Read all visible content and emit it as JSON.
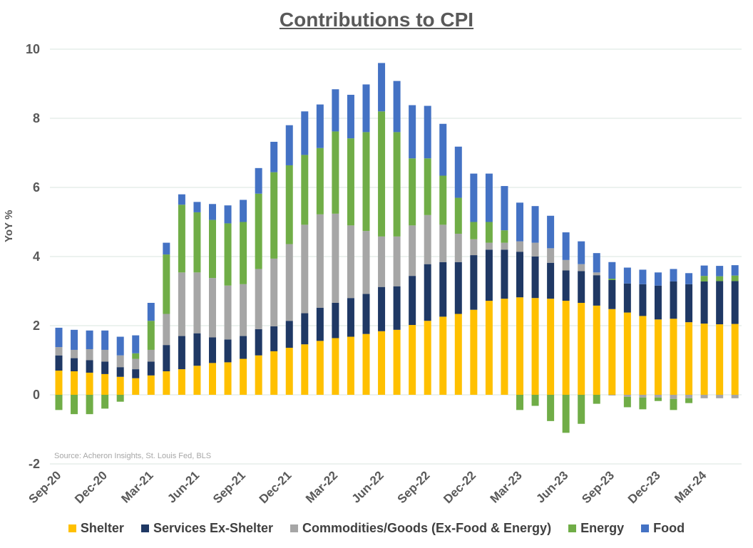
{
  "chart_data": {
    "type": "bar",
    "stacked": true,
    "title": "Contributions to CPI",
    "ylabel": "YoY %",
    "xlabel": "",
    "ylim": [
      -2,
      10
    ],
    "yticks": [
      "-2",
      "0",
      "2",
      "4",
      "6",
      "8",
      "10"
    ],
    "grid": true,
    "legend_position": "bottom",
    "source": "Source: Acheron Insights, St. Louis Fed, BLS",
    "x_tick_labels": [
      "Sep-20",
      "Dec-20",
      "Mar-21",
      "Jun-21",
      "Sep-21",
      "Dec-21",
      "Mar-22",
      "Jun-22",
      "Sep-22",
      "Dec-22",
      "Mar-23",
      "Jun-23",
      "Sep-23",
      "Dec-23",
      "Mar-24"
    ],
    "categories": [
      "Sep-20",
      "Oct-20",
      "Nov-20",
      "Dec-20",
      "Jan-21",
      "Feb-21",
      "Mar-21",
      "Apr-21",
      "May-21",
      "Jun-21",
      "Jul-21",
      "Aug-21",
      "Sep-21",
      "Oct-21",
      "Nov-21",
      "Dec-21",
      "Jan-22",
      "Feb-22",
      "Mar-22",
      "Apr-22",
      "May-22",
      "Jun-22",
      "Jul-22",
      "Aug-22",
      "Sep-22",
      "Oct-22",
      "Nov-22",
      "Dec-22",
      "Jan-23",
      "Feb-23",
      "Mar-23",
      "Apr-23",
      "May-23",
      "Jun-23",
      "Jul-23",
      "Aug-23",
      "Sep-23",
      "Oct-23",
      "Nov-23",
      "Dec-23",
      "Jan-24",
      "Feb-24",
      "Mar-24",
      "Apr-24",
      "May-24"
    ],
    "series": [
      {
        "name": "Shelter",
        "color": "#ffc000",
        "values": [
          0.7,
          0.68,
          0.64,
          0.6,
          0.52,
          0.48,
          0.56,
          0.68,
          0.74,
          0.84,
          0.92,
          0.94,
          1.04,
          1.14,
          1.26,
          1.36,
          1.46,
          1.56,
          1.64,
          1.68,
          1.76,
          1.84,
          1.88,
          2.02,
          2.14,
          2.26,
          2.34,
          2.46,
          2.72,
          2.78,
          2.82,
          2.8,
          2.78,
          2.72,
          2.66,
          2.58,
          2.48,
          2.38,
          2.28,
          2.18,
          2.2,
          2.1,
          2.06,
          2.04,
          2.05
        ]
      },
      {
        "name": "Services Ex-Shelter",
        "color": "#1f3864",
        "values": [
          0.44,
          0.38,
          0.36,
          0.36,
          0.28,
          0.26,
          0.4,
          0.76,
          0.96,
          0.94,
          0.74,
          0.66,
          0.66,
          0.76,
          0.72,
          0.78,
          0.9,
          0.96,
          1.02,
          1.12,
          1.16,
          1.28,
          1.26,
          1.42,
          1.64,
          1.58,
          1.5,
          1.58,
          1.48,
          1.42,
          1.32,
          1.2,
          1.04,
          0.88,
          0.92,
          0.88,
          0.84,
          0.84,
          0.92,
          0.98,
          1.08,
          1.1,
          1.22,
          1.25,
          1.24
        ]
      },
      {
        "name": "Commodities/Goods (Ex-Food & Energy)",
        "color": "#a6a6a6",
        "values": [
          0.24,
          0.24,
          0.32,
          0.34,
          0.34,
          0.3,
          0.34,
          0.9,
          1.84,
          1.76,
          1.72,
          1.56,
          1.5,
          1.74,
          1.96,
          2.22,
          2.56,
          2.7,
          2.58,
          2.1,
          1.82,
          1.46,
          1.44,
          1.46,
          1.42,
          1.08,
          0.82,
          0.46,
          0.2,
          0.2,
          0.3,
          0.4,
          0.42,
          0.3,
          0.2,
          0.08,
          -0.02,
          -0.06,
          -0.08,
          -0.08,
          -0.12,
          -0.1,
          -0.1,
          -0.1,
          -0.1
        ]
      },
      {
        "name": "Energy",
        "color": "#70ad47",
        "values": [
          -0.44,
          -0.56,
          -0.56,
          -0.4,
          -0.2,
          0.16,
          0.84,
          1.72,
          1.96,
          1.74,
          1.68,
          1.8,
          1.8,
          2.18,
          2.5,
          2.28,
          2.02,
          1.92,
          2.38,
          2.52,
          2.86,
          3.62,
          3.02,
          1.94,
          1.64,
          1.42,
          1.04,
          0.5,
          0.6,
          0.36,
          -0.44,
          -0.32,
          -0.76,
          -1.1,
          -0.84,
          -0.26,
          0.04,
          -0.3,
          -0.34,
          -0.1,
          -0.32,
          -0.14,
          0.16,
          0.14,
          0.16
        ]
      },
      {
        "name": "Food",
        "color": "#4472c4",
        "values": [
          0.56,
          0.58,
          0.54,
          0.56,
          0.54,
          0.52,
          0.52,
          0.34,
          0.3,
          0.3,
          0.46,
          0.52,
          0.64,
          0.74,
          0.88,
          1.16,
          1.26,
          1.26,
          1.22,
          1.26,
          1.38,
          1.4,
          1.48,
          1.54,
          1.52,
          1.5,
          1.48,
          1.4,
          1.4,
          1.28,
          1.12,
          1.06,
          0.94,
          0.8,
          0.66,
          0.56,
          0.48,
          0.46,
          0.42,
          0.38,
          0.36,
          0.32,
          0.3,
          0.3,
          0.3
        ]
      }
    ]
  }
}
